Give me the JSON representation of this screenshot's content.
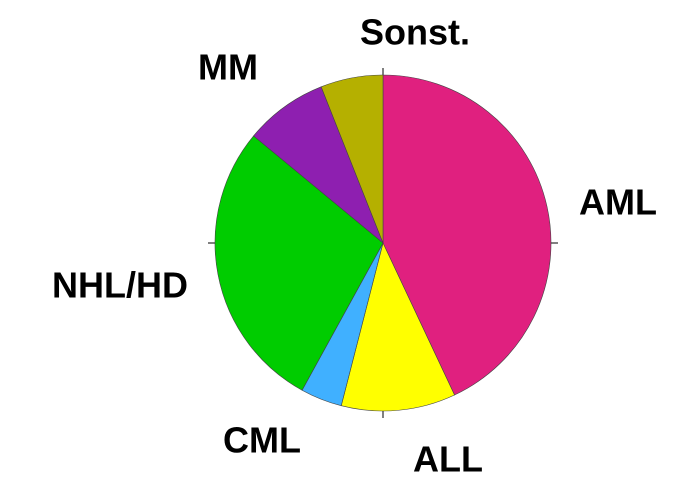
{
  "chart_data": {
    "type": "pie",
    "categories": [
      "AML",
      "ALL",
      "CML",
      "NHL/HD",
      "MM",
      "Sonst."
    ],
    "values": [
      43,
      11,
      4,
      28,
      8,
      6
    ],
    "colors": [
      "#e0207f",
      "#ffff00",
      "#40b0ff",
      "#00cc00",
      "#8e1fb0",
      "#b5b000"
    ]
  }
}
